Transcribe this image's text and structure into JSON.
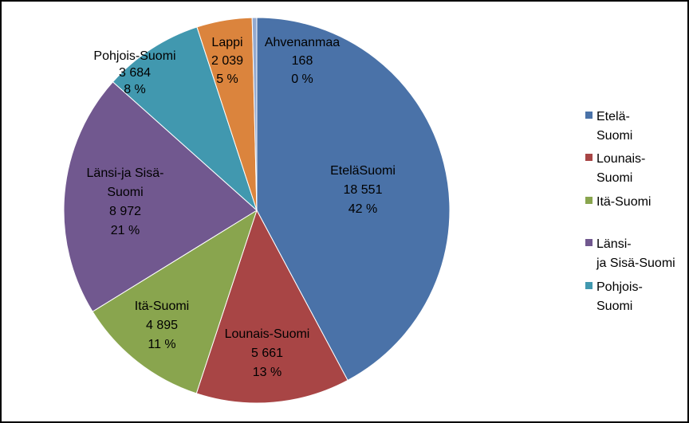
{
  "chart_data": {
    "type": "pie",
    "title": "",
    "series": [
      {
        "name": "EteläSuomi",
        "legend_name": "Etelä-Suomi",
        "value": 18551,
        "value_label": "18 551",
        "percent_label": "42 %",
        "color": "#4a72a8"
      },
      {
        "name": "Lounais-Suomi",
        "legend_name": "Lounais-Suomi",
        "value": 5661,
        "value_label": "5 661",
        "percent_label": "13 %",
        "color": "#a84545"
      },
      {
        "name": "Itä-Suomi",
        "legend_name": "Itä-Suomi",
        "value": 4895,
        "value_label": "4 895",
        "percent_label": "11 %",
        "color": "#89a54e"
      },
      {
        "name": "Länsi-ja Sisä-Suomi",
        "legend_name": "Länsi- ja Sisä-Suomi",
        "value": 8972,
        "value_label": "8 972",
        "percent_label": "21 %",
        "color": "#71588f"
      },
      {
        "name": "Pohjois-Suomi",
        "legend_name": "Pohjois-Suomi",
        "value": 3684,
        "value_label": "3 684",
        "percent_label": "8 %",
        "color": "#4198af"
      },
      {
        "name": "Lappi",
        "legend_name": "Lappi",
        "value": 2039,
        "value_label": "2 039",
        "percent_label": "5 %",
        "color": "#db843d"
      },
      {
        "name": "Ahvenanmaa",
        "legend_name": "Ahvenanmaa",
        "value": 168,
        "value_label": "168",
        "percent_label": "0 %",
        "color": "#93a9cf"
      }
    ],
    "legend_visible_count": 5,
    "legend_placement": "right"
  }
}
